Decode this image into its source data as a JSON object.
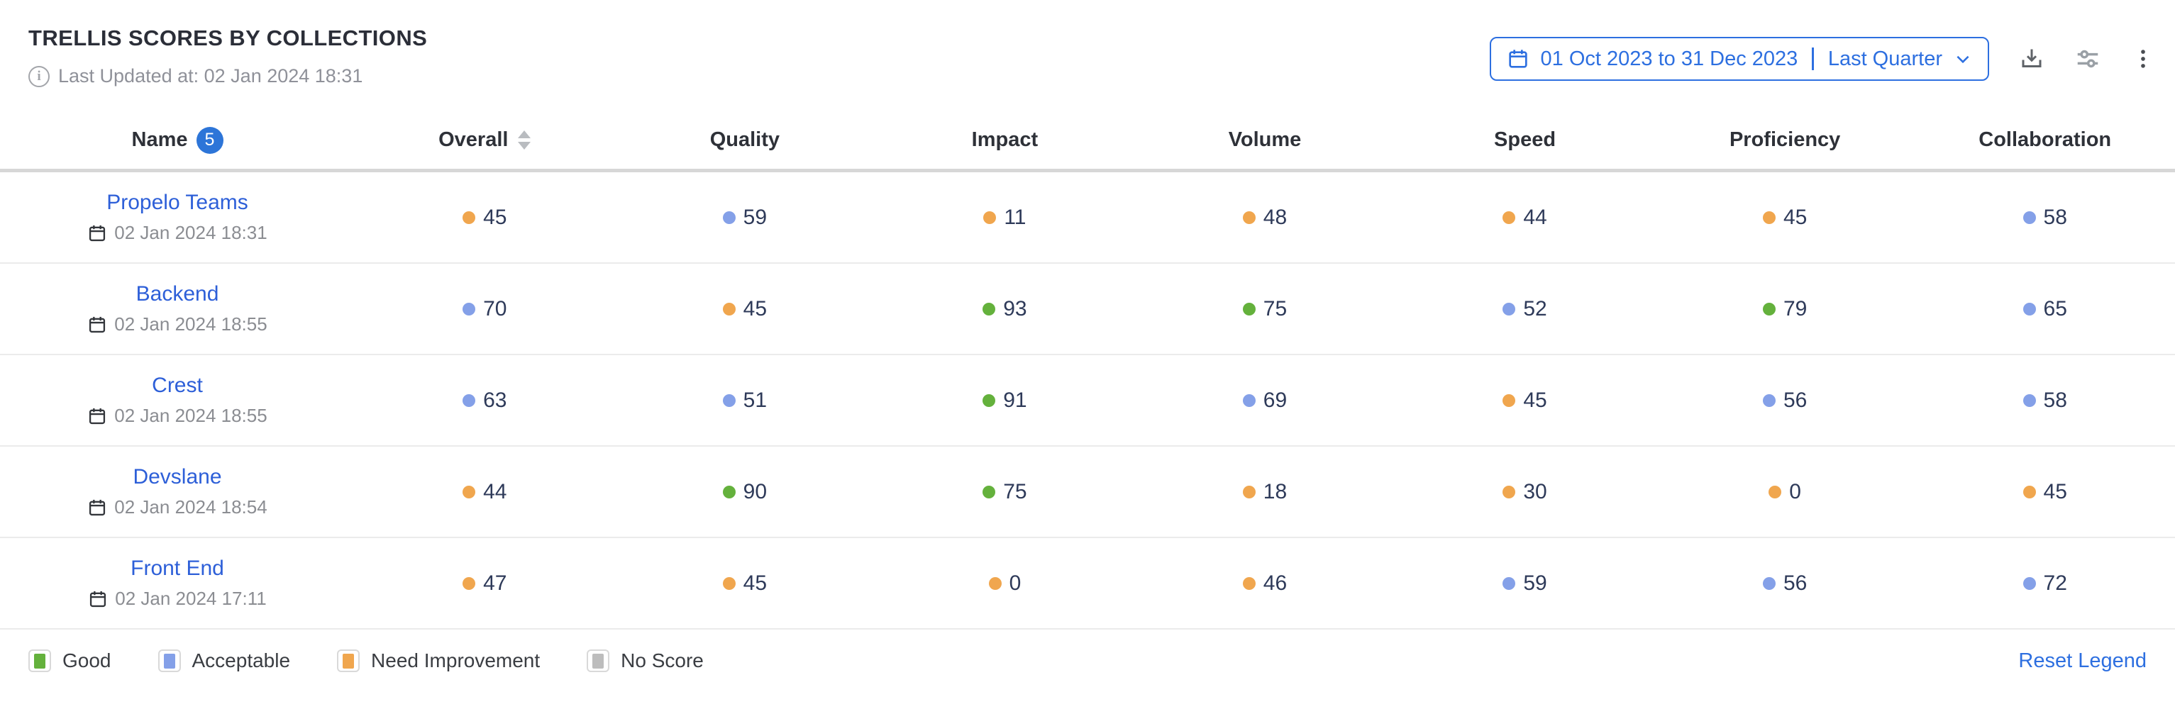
{
  "widget": {
    "title": "TRELLIS SCORES BY COLLECTIONS",
    "last_updated": "Last Updated at: 02 Jan 2024 18:31"
  },
  "toolbar": {
    "date_range": "01 Oct 2023 to 31 Dec 2023",
    "date_preset": "Last Quarter"
  },
  "table": {
    "name_badge_count": "5",
    "columns": [
      "Name",
      "Overall",
      "Quality",
      "Impact",
      "Volume",
      "Speed",
      "Proficiency",
      "Collaboration"
    ],
    "rows": [
      {
        "name": "Propelo Teams",
        "timestamp": "02 Jan 2024 18:31",
        "scores": [
          {
            "value": 45,
            "status": "need_improvement"
          },
          {
            "value": 59,
            "status": "acceptable"
          },
          {
            "value": 11,
            "status": "need_improvement"
          },
          {
            "value": 48,
            "status": "need_improvement"
          },
          {
            "value": 44,
            "status": "need_improvement"
          },
          {
            "value": 45,
            "status": "need_improvement"
          },
          {
            "value": 58,
            "status": "acceptable"
          }
        ]
      },
      {
        "name": "Backend",
        "timestamp": "02 Jan 2024 18:55",
        "scores": [
          {
            "value": 70,
            "status": "acceptable"
          },
          {
            "value": 45,
            "status": "need_improvement"
          },
          {
            "value": 93,
            "status": "good"
          },
          {
            "value": 75,
            "status": "good"
          },
          {
            "value": 52,
            "status": "acceptable"
          },
          {
            "value": 79,
            "status": "good"
          },
          {
            "value": 65,
            "status": "acceptable"
          }
        ]
      },
      {
        "name": "Crest",
        "timestamp": "02 Jan 2024 18:55",
        "scores": [
          {
            "value": 63,
            "status": "acceptable"
          },
          {
            "value": 51,
            "status": "acceptable"
          },
          {
            "value": 91,
            "status": "good"
          },
          {
            "value": 69,
            "status": "acceptable"
          },
          {
            "value": 45,
            "status": "need_improvement"
          },
          {
            "value": 56,
            "status": "acceptable"
          },
          {
            "value": 58,
            "status": "acceptable"
          }
        ]
      },
      {
        "name": "Devslane",
        "timestamp": "02 Jan 2024 18:54",
        "scores": [
          {
            "value": 44,
            "status": "need_improvement"
          },
          {
            "value": 90,
            "status": "good"
          },
          {
            "value": 75,
            "status": "good"
          },
          {
            "value": 18,
            "status": "need_improvement"
          },
          {
            "value": 30,
            "status": "need_improvement"
          },
          {
            "value": 0,
            "status": "need_improvement"
          },
          {
            "value": 45,
            "status": "need_improvement"
          }
        ]
      },
      {
        "name": "Front End",
        "timestamp": "02 Jan 2024 17:11",
        "scores": [
          {
            "value": 47,
            "status": "need_improvement"
          },
          {
            "value": 45,
            "status": "need_improvement"
          },
          {
            "value": 0,
            "status": "need_improvement"
          },
          {
            "value": 46,
            "status": "need_improvement"
          },
          {
            "value": 59,
            "status": "acceptable"
          },
          {
            "value": 56,
            "status": "acceptable"
          },
          {
            "value": 72,
            "status": "acceptable"
          }
        ]
      }
    ]
  },
  "legend": {
    "items": [
      {
        "label": "Good",
        "status": "good"
      },
      {
        "label": "Acceptable",
        "status": "acceptable"
      },
      {
        "label": "Need Improvement",
        "status": "need_improvement"
      },
      {
        "label": "No Score",
        "status": "no_score"
      }
    ],
    "reset_label": "Reset Legend"
  },
  "colors": {
    "good": "#64b13c",
    "acceptable": "#84a0e8",
    "need_improvement": "#f0a64e",
    "no_score": "#bdbdbd",
    "accent": "#2d5fd8",
    "button_blue": "#2d6fe0"
  }
}
